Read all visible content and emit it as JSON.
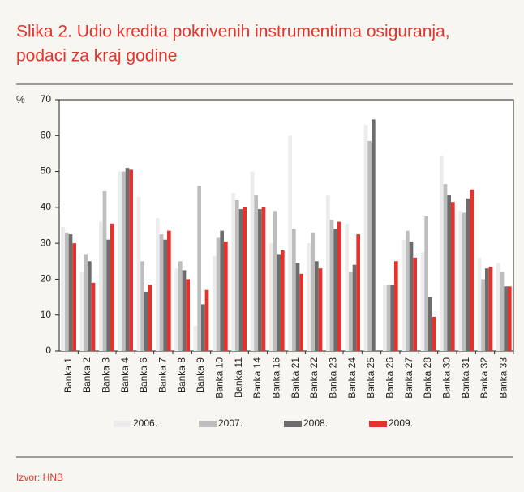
{
  "chart_data": {
    "type": "bar",
    "title": [
      "Slika 2. Udio kredita pokrivenih instrumentima osiguranja,",
      "podaci za kraj godine"
    ],
    "y_label": "%",
    "source": "Izvor: HNB",
    "categories": [
      "Banka 1",
      "Banka 2",
      "Banka 3",
      "Banka 4",
      "Banka 6",
      "Banka 7",
      "Banka 8",
      "Banka 9",
      "Banka 10",
      "Banka 11",
      "Banka 14",
      "Banka 16",
      "Banka 21",
      "Banka 22",
      "Banka 23",
      "Banka 24",
      "Banka 25",
      "Banka 26",
      "Banka 27",
      "Banka 28",
      "Banka 30",
      "Banka 31",
      "Banka 32",
      "Banka 33"
    ],
    "series": [
      {
        "name": "2006.",
        "color": "#ececec",
        "values": [
          34.5,
          22,
          36,
          50,
          43,
          37,
          23,
          7,
          26.5,
          44,
          50,
          30,
          60,
          30,
          43.5,
          35.5,
          63,
          18.5,
          31,
          27.5,
          54.5,
          39,
          26,
          24.5
        ]
      },
      {
        "name": "2007.",
        "color": "#bdbdbd",
        "values": [
          33,
          27,
          44.5,
          50,
          25,
          32.5,
          25,
          46,
          31.5,
          42,
          43.5,
          39,
          34,
          33,
          36.5,
          22,
          58.5,
          18.5,
          33.5,
          37.5,
          46.5,
          38.5,
          20,
          22
        ]
      },
      {
        "name": "2008.",
        "color": "#6d6d6d",
        "values": [
          32.5,
          25,
          31,
          51,
          16.5,
          31,
          22.5,
          13,
          33.5,
          39.5,
          39.5,
          27,
          24.5,
          25,
          34,
          24,
          64.5,
          18.5,
          30.5,
          15,
          43.5,
          42.5,
          23,
          18
        ]
      },
      {
        "name": "2009.",
        "color": "#e5322d",
        "values": [
          30,
          19,
          35.5,
          50.5,
          18.5,
          33.5,
          20,
          17,
          30.5,
          40,
          40,
          28,
          21.5,
          23,
          36,
          32.5,
          null,
          25,
          26,
          9.5,
          41.5,
          45,
          23.5,
          18
        ]
      }
    ],
    "ylim": [
      0,
      70
    ],
    "yticks": [
      0,
      10,
      20,
      30,
      40,
      50,
      60,
      70
    ],
    "grid": false
  }
}
